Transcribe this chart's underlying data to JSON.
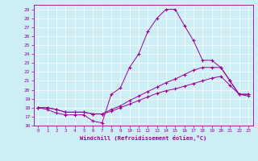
{
  "xlabel": "Windchill (Refroidissement éolien,°C)",
  "background_color": "#cdeef5",
  "line_color": "#990099",
  "xlim": [
    -0.5,
    23.5
  ],
  "ylim": [
    16,
    29.5
  ],
  "xticks": [
    0,
    1,
    2,
    3,
    4,
    5,
    6,
    7,
    8,
    9,
    10,
    11,
    12,
    13,
    14,
    15,
    16,
    17,
    18,
    19,
    20,
    21,
    22,
    23
  ],
  "yticks": [
    16,
    17,
    18,
    19,
    20,
    21,
    22,
    23,
    24,
    25,
    26,
    27,
    28,
    29
  ],
  "series": [
    [
      18.0,
      17.8,
      17.4,
      17.2,
      17.2,
      17.2,
      16.5,
      16.3,
      19.5,
      20.2,
      22.5,
      24.0,
      26.5,
      28.0,
      29.0,
      29.0,
      27.2,
      25.5,
      23.3,
      23.3,
      22.5,
      21.0,
      19.5,
      19.5
    ],
    [
      18.0,
      18.0,
      17.8,
      17.5,
      17.5,
      17.5,
      17.3,
      17.3,
      17.8,
      18.2,
      18.8,
      19.3,
      19.8,
      20.3,
      20.8,
      21.2,
      21.7,
      22.2,
      22.5,
      22.5,
      22.5,
      21.0,
      19.5,
      19.5
    ],
    [
      18.0,
      18.0,
      17.8,
      17.5,
      17.5,
      17.5,
      17.3,
      17.3,
      17.6,
      18.0,
      18.4,
      18.8,
      19.2,
      19.6,
      19.9,
      20.1,
      20.4,
      20.7,
      21.0,
      21.3,
      21.5,
      20.5,
      19.5,
      19.3
    ]
  ]
}
